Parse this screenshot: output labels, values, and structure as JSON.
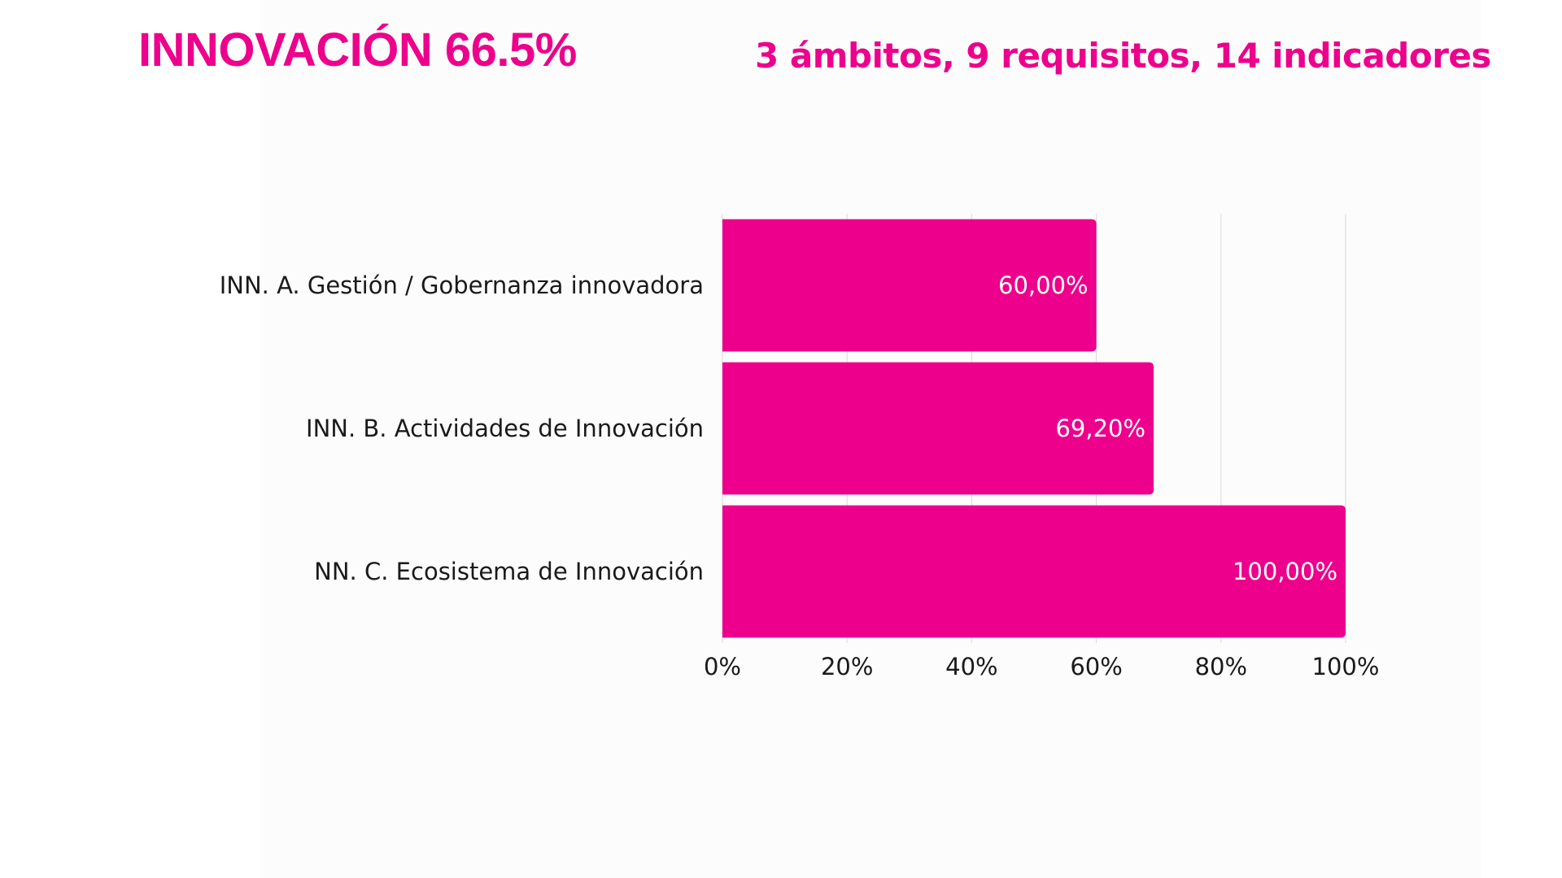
{
  "header": {
    "title": "INNOVACIÓN 66.5%",
    "subtitle": "3 ámbitos, 9 requisitos, 14 indicadores"
  },
  "colors": {
    "bar": "#ec008c",
    "title": "#ec008c",
    "grid": "#d9d9d9",
    "label": "#1a1a1a",
    "data_label": "#ffffff"
  },
  "chart_data": {
    "type": "bar",
    "orientation": "horizontal",
    "categories": [
      "INN. A. Gestión / Gobernanza innovadora",
      "INN. B. Actividades de Innovación",
      "NN. C. Ecosistema de Innovación"
    ],
    "values": [
      60,
      69.2,
      100
    ],
    "data_labels": [
      "60,00%",
      "69,20%",
      "100,00%"
    ],
    "xlim": [
      0,
      100
    ],
    "x_ticks": [
      0,
      20,
      40,
      60,
      80,
      100
    ],
    "x_tick_labels": [
      "0%",
      "20%",
      "40%",
      "60%",
      "80%",
      "100%"
    ],
    "grid": true,
    "legend": "none"
  }
}
